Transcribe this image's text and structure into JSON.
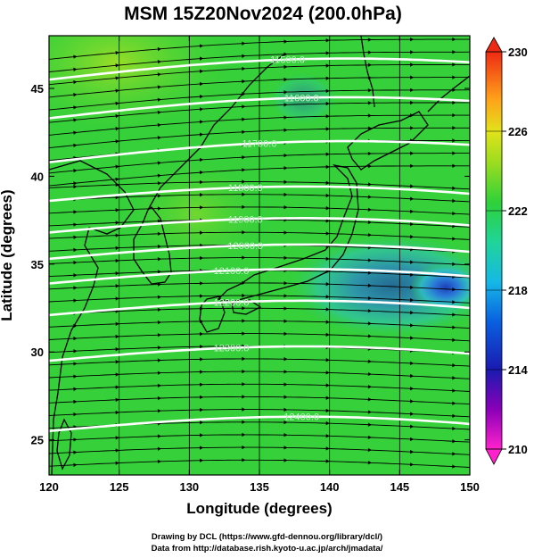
{
  "title": "MSM 15Z20Nov2024 (200.0hPa)",
  "xaxis": {
    "label": "Longitude (degrees)",
    "min": 120,
    "max": 150,
    "ticks": [
      120,
      125,
      130,
      135,
      140,
      145,
      150
    ]
  },
  "yaxis": {
    "label": "Latitude  (degrees)",
    "min": 23,
    "max": 48,
    "ticks": [
      25,
      30,
      35,
      40,
      45
    ]
  },
  "colorbar": {
    "min": 210,
    "max": 230,
    "tick_labels": [
      "230",
      "226",
      "222",
      "218",
      "214",
      "210"
    ],
    "ticks": [
      230,
      226,
      222,
      218,
      214,
      210
    ]
  },
  "contours": [
    {
      "label": "11500.0",
      "lat": 45.5
    },
    {
      "label": "11600.0",
      "lat": 43.3
    },
    {
      "label": "11700.0",
      "lat": 40.8
    },
    {
      "label": "11800.0",
      "lat": 38.6
    },
    {
      "label": "11900.0",
      "lat": 36.8
    },
    {
      "label": "12000.0",
      "lat": 35.3
    },
    {
      "label": "12100.0",
      "lat": 33.9
    },
    {
      "label": "12200.0",
      "lat": 32.1
    },
    {
      "label": "12300.0",
      "lat": 29.5
    },
    {
      "label": "12400.0",
      "lat": 25.5
    }
  ],
  "field": {
    "variable": "temperature shading with wind vectors",
    "prevailing_wind": "westerly"
  },
  "colors": {
    "field_main": "#2ecf3a",
    "field_north": "#7bd92a",
    "cold_core": "#1c3fb8",
    "contour": "#ffffff"
  },
  "credits": {
    "line1": "Drawing by DCL (https://www.gfd-dennou.org/library/dcl/)",
    "line2": "Data from http://database.rish.kyoto-u.ac.jp/arch/jmadata/"
  }
}
